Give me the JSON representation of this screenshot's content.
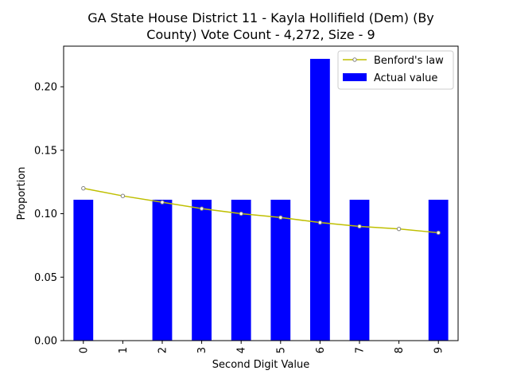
{
  "chart_data": {
    "type": "bar",
    "title_lines": [
      "GA State House District 11 - Kayla Hollifield (Dem) (By",
      "County) Vote Count - 4,272, Size - 9"
    ],
    "xlabel": "Second Digit Value",
    "ylabel": "Proportion",
    "categories": [
      "0",
      "1",
      "2",
      "3",
      "4",
      "5",
      "6",
      "7",
      "8",
      "9"
    ],
    "ylim": [
      0,
      0.232
    ],
    "yticks": [
      0.0,
      0.05,
      0.1,
      0.15,
      0.2
    ],
    "ytick_labels": [
      "0.00",
      "0.05",
      "0.10",
      "0.15",
      "0.20"
    ],
    "grid": false,
    "legend_position": "top-right",
    "series": [
      {
        "name": "Actual value",
        "kind": "bar",
        "color": "#0000ff",
        "values": [
          0.111,
          0.0,
          0.111,
          0.111,
          0.111,
          0.111,
          0.222,
          0.111,
          0.0,
          0.111
        ]
      },
      {
        "name": "Benford's law",
        "kind": "line",
        "color": "#bfbf00",
        "marker_color": "#808080",
        "values": [
          0.12,
          0.114,
          0.109,
          0.104,
          0.1,
          0.097,
          0.093,
          0.09,
          0.088,
          0.085
        ]
      }
    ]
  }
}
